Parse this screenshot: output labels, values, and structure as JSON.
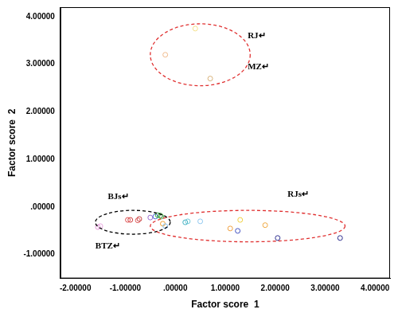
{
  "chart_data": {
    "type": "scatter",
    "x_label": "Factor score  1",
    "y_label": "Factor score  2",
    "xlim": [
      -2.3,
      4.3
    ],
    "ylim": [
      -1.5,
      4.2
    ],
    "xticks": [
      {
        "value": -2,
        "label": "-2.00000"
      },
      {
        "value": -1,
        "label": "-1.00000"
      },
      {
        "value": 0,
        "label": ".00000"
      },
      {
        "value": 1,
        "label": "1.00000"
      },
      {
        "value": 2,
        "label": "2.00000"
      },
      {
        "value": 3,
        "label": "3.00000"
      },
      {
        "value": 4,
        "label": "4.00000"
      }
    ],
    "yticks": [
      {
        "value": -1,
        "label": "-1.00000"
      },
      {
        "value": 0,
        "label": ".00000"
      },
      {
        "value": 1,
        "label": "1.00000"
      },
      {
        "value": 2,
        "label": "2.00000"
      },
      {
        "value": 3,
        "label": "3.00000"
      },
      {
        "value": 4,
        "label": "4.00000"
      }
    ],
    "grid": false,
    "marker": "circle",
    "x": [
      -0.2,
      0.4,
      0.7,
      -1.55,
      -1.5,
      -0.95,
      -0.9,
      -0.75,
      -0.72,
      -0.5,
      -0.4,
      -0.35,
      -0.3,
      -0.28,
      -0.25,
      -0.2,
      0.2,
      0.25,
      0.5,
      1.1,
      1.25,
      1.3,
      1.8,
      2.05,
      3.3
    ],
    "values": [
      3.2,
      3.75,
      2.7,
      -0.42,
      -0.4,
      -0.27,
      -0.27,
      -0.28,
      -0.25,
      -0.22,
      -0.2,
      -0.17,
      -0.18,
      -0.2,
      -0.35,
      -0.4,
      -0.32,
      -0.3,
      -0.3,
      -0.45,
      -0.5,
      -0.27,
      -0.38,
      -0.65,
      -0.65
    ],
    "colors": [
      "#f0b98a",
      "#f5e08a",
      "#d8b27a",
      "#e59ad8",
      "#e8a8e0",
      "#e05050",
      "#d04040",
      "#e06060",
      "#c84848",
      "#9a6ad0",
      "#4a6ad0",
      "#30b040",
      "#207a20",
      "#60c060",
      "#f0a030",
      "#80c0f0",
      "#40b0c0",
      "#70c8d8",
      "#90c8f0",
      "#f0a040",
      "#4050c0",
      "#f0d040",
      "#f0a840",
      "#303090",
      "#303090"
    ],
    "ellipses": [
      {
        "center": [
          0.5,
          3.2
        ],
        "radii": [
          1.0,
          0.65
        ],
        "color": "#e03030",
        "line_style": "dashed"
      },
      {
        "center": [
          -0.85,
          -0.32
        ],
        "radii": [
          0.75,
          0.25
        ],
        "color": "#000000",
        "line_style": "dashed"
      },
      {
        "center": [
          1.45,
          -0.4
        ],
        "radii": [
          1.95,
          0.33
        ],
        "color": "#e03030",
        "line_style": "dashed"
      }
    ],
    "annotations": [
      {
        "text": "RJ↵",
        "x": 1.45,
        "y": 3.6
      },
      {
        "text": "MZ↵",
        "x": 1.45,
        "y": 2.95
      },
      {
        "text": "BJs↵",
        "x": -1.35,
        "y": 0.22
      },
      {
        "text": "BTZ↵",
        "x": -1.6,
        "y": -0.82
      },
      {
        "text": "RJs↵",
        "x": 2.25,
        "y": 0.27
      }
    ]
  }
}
